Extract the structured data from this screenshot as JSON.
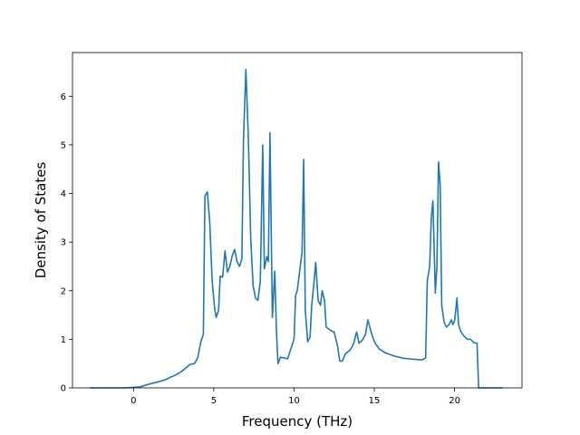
{
  "chart_data": {
    "type": "line",
    "title": "",
    "xlabel": "Frequency (THz)",
    "ylabel": "Density of States",
    "xlim": [
      -3.8,
      24.2
    ],
    "ylim": [
      0,
      6.9
    ],
    "xticks": [
      0,
      5,
      10,
      15,
      20
    ],
    "yticks": [
      0,
      1,
      2,
      3,
      4,
      5,
      6
    ],
    "grid": false,
    "legend": "none",
    "series": [
      {
        "color": "#1f77b4",
        "points": [
          [
            -2.7,
            0
          ],
          [
            -1.5,
            0
          ],
          [
            -0.5,
            0
          ],
          [
            0.0,
            0.01
          ],
          [
            0.4,
            0.02
          ],
          [
            0.7,
            0.05
          ],
          [
            1.0,
            0.08
          ],
          [
            1.5,
            0.12
          ],
          [
            2.0,
            0.17
          ],
          [
            2.3,
            0.22
          ],
          [
            2.6,
            0.26
          ],
          [
            3.0,
            0.34
          ],
          [
            3.3,
            0.42
          ],
          [
            3.5,
            0.48
          ],
          [
            3.8,
            0.5
          ],
          [
            4.0,
            0.62
          ],
          [
            4.2,
            0.95
          ],
          [
            4.35,
            1.1
          ],
          [
            4.45,
            3.95
          ],
          [
            4.6,
            4.03
          ],
          [
            4.75,
            3.4
          ],
          [
            4.9,
            2.2
          ],
          [
            5.05,
            1.65
          ],
          [
            5.15,
            1.45
          ],
          [
            5.3,
            1.6
          ],
          [
            5.4,
            2.3
          ],
          [
            5.55,
            2.28
          ],
          [
            5.7,
            2.82
          ],
          [
            5.85,
            2.38
          ],
          [
            6.0,
            2.5
          ],
          [
            6.15,
            2.72
          ],
          [
            6.3,
            2.85
          ],
          [
            6.45,
            2.6
          ],
          [
            6.6,
            2.5
          ],
          [
            6.75,
            2.65
          ],
          [
            6.85,
            5.1
          ],
          [
            7.0,
            6.55
          ],
          [
            7.15,
            5.2
          ],
          [
            7.3,
            3.1
          ],
          [
            7.45,
            2.1
          ],
          [
            7.6,
            1.85
          ],
          [
            7.75,
            1.8
          ],
          [
            7.9,
            2.2
          ],
          [
            8.05,
            5.0
          ],
          [
            8.15,
            2.45
          ],
          [
            8.3,
            2.7
          ],
          [
            8.4,
            2.6
          ],
          [
            8.5,
            5.25
          ],
          [
            8.65,
            1.45
          ],
          [
            8.8,
            2.4
          ],
          [
            8.9,
            1.2
          ],
          [
            9.0,
            0.5
          ],
          [
            9.15,
            0.63
          ],
          [
            9.35,
            0.62
          ],
          [
            9.6,
            0.6
          ],
          [
            9.8,
            0.8
          ],
          [
            10.0,
            1.0
          ],
          [
            10.1,
            1.9
          ],
          [
            10.2,
            2.0
          ],
          [
            10.35,
            2.4
          ],
          [
            10.5,
            2.8
          ],
          [
            10.6,
            4.7
          ],
          [
            10.7,
            1.6
          ],
          [
            10.85,
            0.95
          ],
          [
            11.0,
            1.05
          ],
          [
            11.1,
            1.7
          ],
          [
            11.25,
            2.2
          ],
          [
            11.35,
            2.58
          ],
          [
            11.5,
            1.8
          ],
          [
            11.65,
            1.7
          ],
          [
            11.75,
            2.0
          ],
          [
            11.9,
            1.8
          ],
          [
            12.0,
            1.25
          ],
          [
            12.3,
            1.18
          ],
          [
            12.5,
            1.15
          ],
          [
            12.7,
            0.88
          ],
          [
            12.85,
            0.55
          ],
          [
            13.0,
            0.55
          ],
          [
            13.2,
            0.7
          ],
          [
            13.5,
            0.78
          ],
          [
            13.7,
            0.9
          ],
          [
            13.9,
            1.15
          ],
          [
            14.05,
            0.92
          ],
          [
            14.25,
            0.98
          ],
          [
            14.45,
            1.1
          ],
          [
            14.6,
            1.4
          ],
          [
            14.8,
            1.15
          ],
          [
            15.0,
            0.95
          ],
          [
            15.3,
            0.8
          ],
          [
            15.7,
            0.72
          ],
          [
            16.2,
            0.66
          ],
          [
            16.8,
            0.61
          ],
          [
            17.4,
            0.59
          ],
          [
            17.8,
            0.58
          ],
          [
            18.0,
            0.58
          ],
          [
            18.2,
            0.62
          ],
          [
            18.3,
            2.2
          ],
          [
            18.45,
            2.5
          ],
          [
            18.55,
            3.5
          ],
          [
            18.65,
            3.85
          ],
          [
            18.8,
            1.95
          ],
          [
            18.9,
            2.5
          ],
          [
            19.0,
            4.65
          ],
          [
            19.1,
            4.2
          ],
          [
            19.2,
            1.7
          ],
          [
            19.35,
            1.35
          ],
          [
            19.5,
            1.25
          ],
          [
            19.65,
            1.3
          ],
          [
            19.8,
            1.4
          ],
          [
            19.9,
            1.3
          ],
          [
            20.0,
            1.38
          ],
          [
            20.15,
            1.85
          ],
          [
            20.25,
            1.3
          ],
          [
            20.4,
            1.15
          ],
          [
            20.6,
            1.06
          ],
          [
            20.8,
            1.0
          ],
          [
            21.0,
            1.0
          ],
          [
            21.2,
            0.93
          ],
          [
            21.4,
            0.92
          ],
          [
            21.5,
            0.0
          ],
          [
            22.0,
            0.0
          ],
          [
            23.0,
            0.0
          ]
        ]
      }
    ]
  }
}
